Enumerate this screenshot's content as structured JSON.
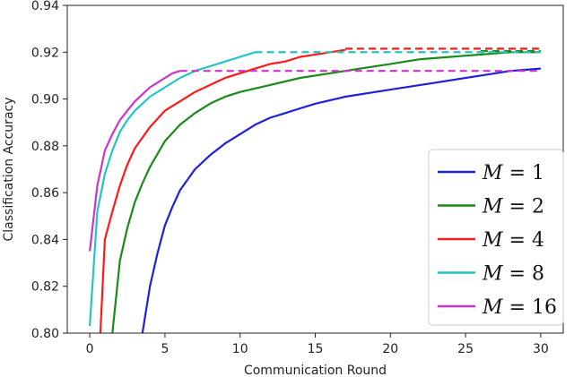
{
  "chart_data": {
    "type": "line",
    "title": "",
    "xlabel": "Communication Round",
    "ylabel": "Classification Accuracy",
    "xlim": [
      -1.5,
      31.5
    ],
    "ylim": [
      0.8,
      0.94
    ],
    "xticks": [
      0,
      5,
      10,
      15,
      20,
      25,
      30
    ],
    "yticks": [
      0.8,
      0.82,
      0.84,
      0.86,
      0.88,
      0.9,
      0.92,
      0.94
    ],
    "xtick_labels": [
      "0",
      "5",
      "10",
      "15",
      "20",
      "25",
      "30"
    ],
    "ytick_labels": [
      "0.80",
      "0.82",
      "0.84",
      "0.86",
      "0.88",
      "0.90",
      "0.92",
      "0.94"
    ],
    "grid": false,
    "legend_position": "lower-right",
    "series": [
      {
        "name": "M = 1",
        "legend_var": "M",
        "legend_value": "1",
        "color": "#1f1fe0",
        "x": [
          3.5,
          4.0,
          4.5,
          5.0,
          5.5,
          6.0,
          7.0,
          8.0,
          9.0,
          10.0,
          11.0,
          12.0,
          13.0,
          14.0,
          15.0,
          17.0,
          20.0,
          23.0,
          26.0,
          28.0,
          30.0
        ],
        "y": [
          0.8,
          0.82,
          0.834,
          0.846,
          0.854,
          0.861,
          0.87,
          0.876,
          0.881,
          0.885,
          0.889,
          0.892,
          0.894,
          0.896,
          0.898,
          0.901,
          0.904,
          0.907,
          0.91,
          0.912,
          0.913
        ],
        "dashed_level": null,
        "dashed_from": null
      },
      {
        "name": "M = 2",
        "legend_var": "M",
        "legend_value": "2",
        "color": "#1a8a1a",
        "x": [
          1.5,
          2.0,
          2.5,
          3.0,
          3.5,
          4.0,
          5.0,
          6.0,
          7.0,
          8.0,
          9.0,
          10.0,
          12.0,
          14.0,
          16.0,
          18.0,
          20.0,
          22.0,
          24.0,
          26.0,
          28.0,
          30.0
        ],
        "y": [
          0.8,
          0.831,
          0.845,
          0.856,
          0.864,
          0.871,
          0.882,
          0.889,
          0.894,
          0.898,
          0.901,
          0.903,
          0.906,
          0.909,
          0.911,
          0.913,
          0.915,
          0.917,
          0.918,
          0.919,
          0.92,
          0.92
        ],
        "dashed_level": 0.9205,
        "dashed_from": 26.0
      },
      {
        "name": "M = 4",
        "legend_var": "M",
        "legend_value": "4",
        "color": "#ff1a1a",
        "x": [
          0.7,
          1.0,
          1.5,
          2.0,
          2.5,
          3.0,
          4.0,
          5.0,
          6.0,
          7.0,
          8.0,
          9.0,
          10.0,
          11.0,
          12.0,
          13.0,
          14.0,
          15.0,
          16.0,
          17.0
        ],
        "y": [
          0.8,
          0.84,
          0.852,
          0.863,
          0.872,
          0.879,
          0.888,
          0.895,
          0.899,
          0.903,
          0.906,
          0.909,
          0.911,
          0.913,
          0.915,
          0.916,
          0.918,
          0.919,
          0.92,
          0.921
        ],
        "dashed_level": 0.9215,
        "dashed_from": 17.0
      },
      {
        "name": "M = 8",
        "legend_var": "M",
        "legend_value": "8",
        "color": "#22c4c4",
        "x": [
          0.0,
          0.5,
          1.0,
          1.5,
          2.0,
          2.5,
          3.0,
          4.0,
          5.0,
          6.0,
          7.0,
          8.0,
          9.0,
          10.0,
          11.0
        ],
        "y": [
          0.803,
          0.852,
          0.868,
          0.878,
          0.886,
          0.891,
          0.895,
          0.901,
          0.905,
          0.909,
          0.912,
          0.914,
          0.916,
          0.918,
          0.92
        ],
        "dashed_level": 0.92,
        "dashed_from": 11.0
      },
      {
        "name": "M = 16",
        "legend_var": "M",
        "legend_value": "16",
        "color": "#cc33cc",
        "x": [
          0.0,
          0.5,
          1.0,
          1.5,
          2.0,
          2.5,
          3.0,
          3.5,
          4.0,
          4.5,
          5.0,
          5.5,
          6.0
        ],
        "y": [
          0.835,
          0.863,
          0.878,
          0.885,
          0.891,
          0.895,
          0.899,
          0.902,
          0.905,
          0.907,
          0.909,
          0.911,
          0.912
        ],
        "dashed_level": 0.912,
        "dashed_from": 6.0
      }
    ]
  }
}
